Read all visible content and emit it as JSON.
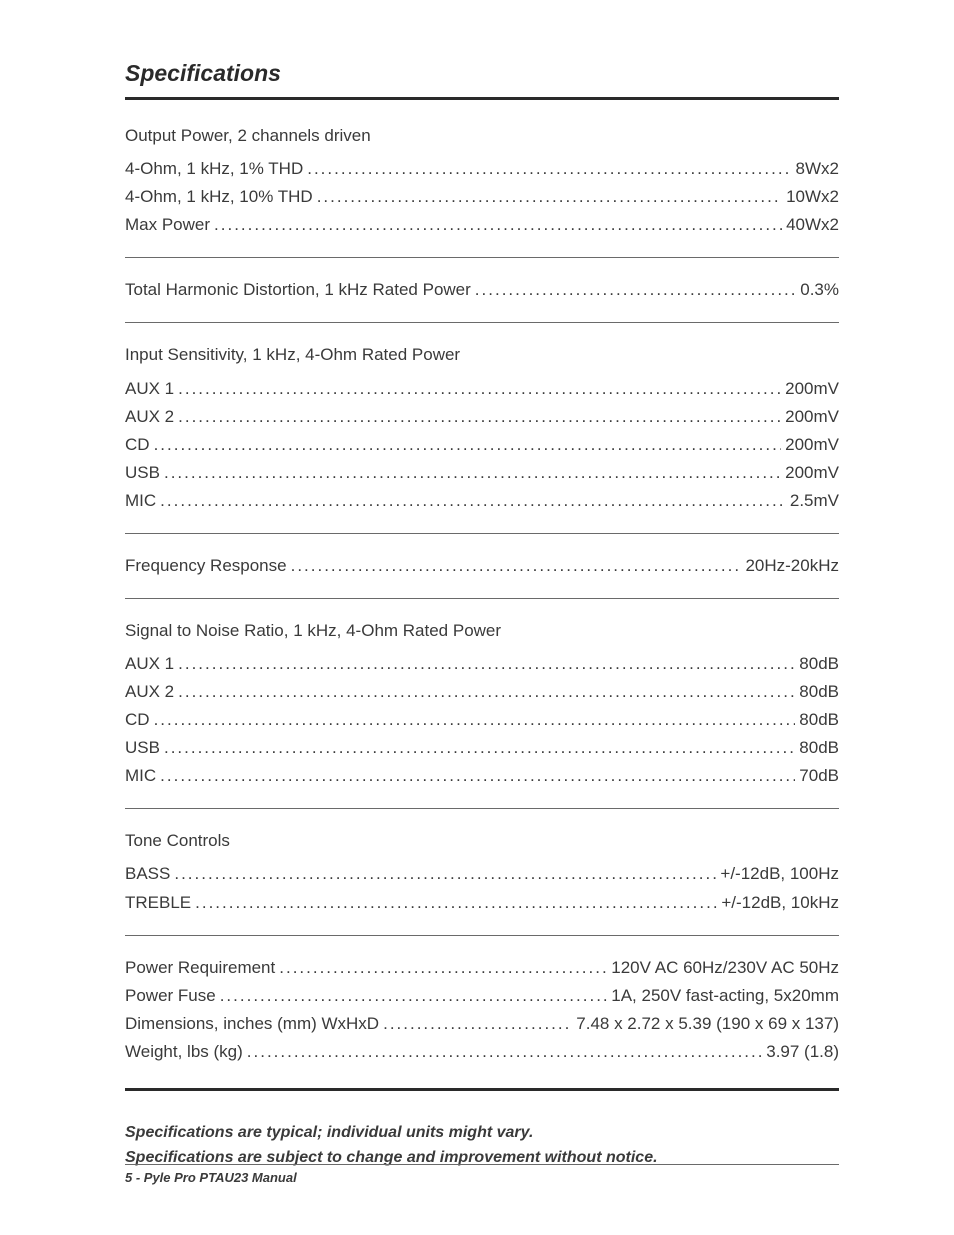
{
  "title": "Specifications",
  "sections": [
    {
      "header": "Output Power, 2 channels driven",
      "rows": [
        {
          "label": "4-Ohm, 1 kHz,  1% THD",
          "value": "8Wx2"
        },
        {
          "label": "4-Ohm, 1 kHz, 10% THD",
          "value": "10Wx2"
        },
        {
          "label": "Max Power",
          "value": "40Wx2"
        }
      ]
    },
    {
      "header": null,
      "rows": [
        {
          "label": "Total Harmonic Distortion, 1 kHz Rated Power",
          "value": "0.3%"
        }
      ]
    },
    {
      "header": "Input Sensitivity, 1 kHz, 4-Ohm Rated Power",
      "rows": [
        {
          "label": "AUX 1",
          "value": "200mV"
        },
        {
          "label": "AUX 2",
          "value": "200mV"
        },
        {
          "label": "CD",
          "value": "200mV"
        },
        {
          "label": "USB",
          "value": "200mV"
        },
        {
          "label": "MIC",
          "value": "2.5mV"
        }
      ]
    },
    {
      "header": null,
      "rows": [
        {
          "label": "Frequency Response",
          "value": "20Hz-20kHz"
        }
      ]
    },
    {
      "header": "Signal to Noise Ratio, 1 kHz, 4-Ohm Rated Power",
      "rows": [
        {
          "label": "AUX 1",
          "value": "80dB"
        },
        {
          "label": "AUX 2",
          "value": "80dB"
        },
        {
          "label": "CD",
          "value": "80dB"
        },
        {
          "label": "USB",
          "value": "80dB"
        },
        {
          "label": "MIC",
          "value": "70dB"
        }
      ]
    },
    {
      "header": "Tone Controls",
      "rows": [
        {
          "label": "BASS",
          "value": "+/-12dB, 100Hz"
        },
        {
          "label": "TREBLE",
          "value": "+/-12dB, 10kHz"
        }
      ]
    },
    {
      "header": null,
      "rows": [
        {
          "label": "Power Requirement",
          "value": "120V AC 60Hz/230V AC 50Hz"
        },
        {
          "label": "Power Fuse",
          "value": "1A, 250V fast-acting, 5x20mm"
        },
        {
          "label": "Dimensions, inches (mm) WxHxD",
          "value": "7.48 x 2.72 x 5.39 (190 x 69 x 137)"
        },
        {
          "label": "Weight, lbs (kg)",
          "value": "3.97 (1.8)"
        }
      ]
    }
  ],
  "notes": [
    "Specifications are typical; individual units might vary.",
    "Specifications are subject to change and improvement without notice."
  ],
  "footer": "5 - Pyle Pro PTAU23 Manual",
  "colors": {
    "text": "#3a3a3a",
    "title": "#2a2a2a",
    "rule_thick": "#2a2a2a",
    "rule_thin": "#6a6a6a",
    "background": "#ffffff"
  }
}
